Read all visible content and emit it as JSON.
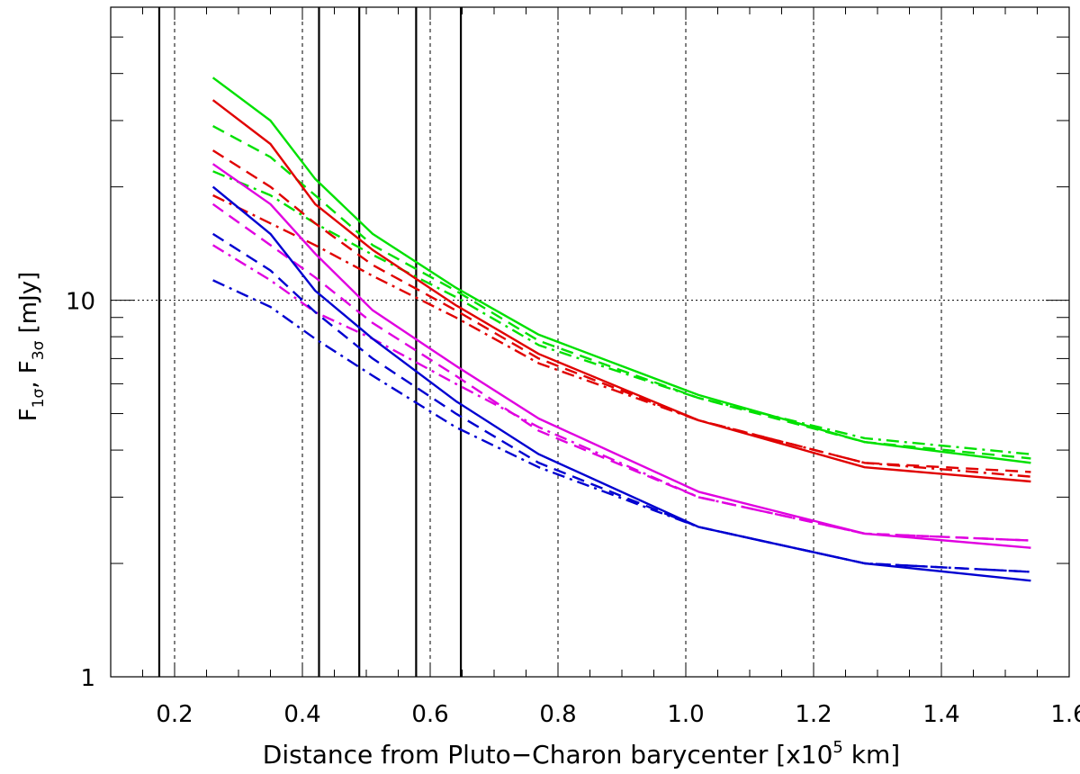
{
  "chart_data": {
    "type": "line",
    "title": "",
    "xlabel": "Distance from Pluto−Charon barycenter [x10",
    "xlabel_sup": "5",
    "xlabel_tail": " km]",
    "ylabel": "F",
    "ylabel_sub1": "1σ",
    "ylabel_mid": ",  F",
    "ylabel_sub2": "3σ",
    "ylabel_tail": "  [mJy]",
    "xlim": [
      0.1,
      1.6
    ],
    "ylim": [
      1,
      60
    ],
    "yscale": "log",
    "xticks": [
      0.2,
      0.4,
      0.6,
      0.8,
      1.0,
      1.2,
      1.4,
      1.6
    ],
    "xtick_labels": [
      "0.2",
      "0.4",
      "0.6",
      "0.8",
      "1.0",
      "1.2",
      "1.4",
      "1.6"
    ],
    "yticks": [
      1,
      10
    ],
    "ytick_labels": [
      "1",
      "10"
    ],
    "x_grid": [
      0.2,
      0.4,
      0.6,
      0.8,
      1.0,
      1.2,
      1.4
    ],
    "y_grid": [
      10
    ],
    "vertical_lines": [
      0.176,
      0.426,
      0.489,
      0.578,
      0.648
    ],
    "x": [
      0.26,
      0.35,
      0.42,
      0.51,
      0.64,
      0.77,
      1.02,
      1.28,
      1.54
    ],
    "series": [
      {
        "color": "#00e000",
        "style": "solid",
        "values": [
          39,
          30,
          21,
          15,
          10.8,
          8.1,
          5.6,
          4.2,
          3.7
        ]
      },
      {
        "color": "#00e000",
        "style": "dashed",
        "values": [
          29,
          24,
          19,
          14,
          10.6,
          7.8,
          5.5,
          4.2,
          3.8
        ]
      },
      {
        "color": "#00e000",
        "style": "dashdot",
        "values": [
          22,
          19,
          16,
          13.2,
          10.2,
          7.6,
          5.5,
          4.3,
          3.9
        ]
      },
      {
        "color": "#e00000",
        "style": "solid",
        "values": [
          34,
          26,
          18,
          13.6,
          9.7,
          7.2,
          4.8,
          3.6,
          3.3
        ]
      },
      {
        "color": "#e00000",
        "style": "dashed",
        "values": [
          25,
          20,
          16,
          12.4,
          9.4,
          7.0,
          4.8,
          3.7,
          3.5
        ]
      },
      {
        "color": "#e00000",
        "style": "dashdot",
        "values": [
          19,
          16,
          14,
          11.6,
          9.0,
          6.8,
          4.8,
          3.7,
          3.4
        ]
      },
      {
        "color": "#e000e0",
        "style": "solid",
        "values": [
          23,
          18,
          13.3,
          9.4,
          6.7,
          4.85,
          3.1,
          2.4,
          2.2
        ]
      },
      {
        "color": "#e000e0",
        "style": "dashed",
        "values": [
          18,
          14,
          11.5,
          8.7,
          6.3,
          4.5,
          3.0,
          2.4,
          2.3
        ]
      },
      {
        "color": "#e000e0",
        "style": "dashdot",
        "values": [
          14,
          11.3,
          9.3,
          7.9,
          6.0,
          4.6,
          3.0,
          2.4,
          2.3
        ]
      },
      {
        "color": "#0000d0",
        "style": "solid",
        "values": [
          20,
          15,
          10.6,
          7.9,
          5.4,
          3.9,
          2.5,
          2.0,
          1.8
        ]
      },
      {
        "color": "#0000d0",
        "style": "dashed",
        "values": [
          15,
          12,
          9.3,
          7.0,
          5.0,
          3.7,
          2.5,
          2.0,
          1.9
        ]
      },
      {
        "color": "#0000d0",
        "style": "dashdot",
        "values": [
          11.3,
          9.6,
          7.9,
          6.3,
          4.6,
          3.6,
          2.5,
          2.0,
          1.9
        ]
      }
    ]
  }
}
